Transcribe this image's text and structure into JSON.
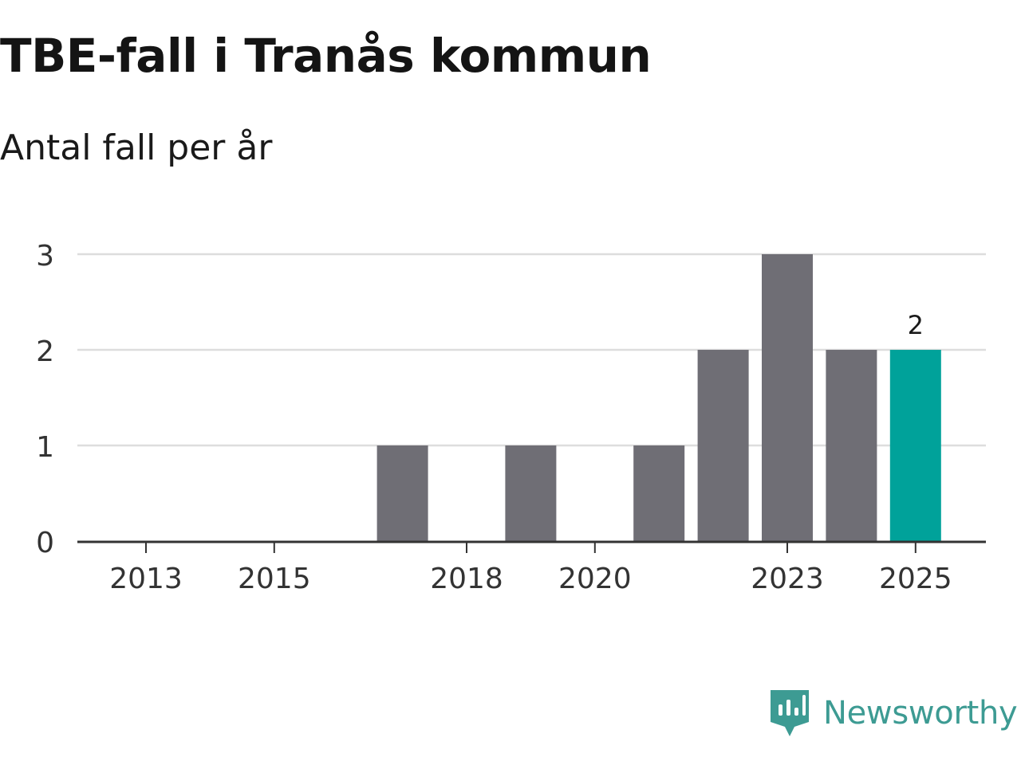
{
  "title": "TBE-fall i Tranås kommun",
  "subtitle": "Antal fall per år",
  "brand": {
    "name": "Newsworthy",
    "icon": "newsworthy-logo-icon",
    "color": "#3d9b93"
  },
  "chart_data": {
    "type": "bar",
    "title": "TBE-fall i Tranås kommun",
    "subtitle": "Antal fall per år",
    "xlabel": "",
    "ylabel": "",
    "categories": [
      "2013",
      "2014",
      "2015",
      "2016",
      "2017",
      "2018",
      "2019",
      "2020",
      "2021",
      "2022",
      "2023",
      "2024",
      "2025"
    ],
    "values": [
      0,
      0,
      0,
      0,
      1,
      0,
      1,
      0,
      1,
      2,
      3,
      2,
      2
    ],
    "x_tick_labels": [
      "2013",
      "2015",
      "2018",
      "2020",
      "2023",
      "2025"
    ],
    "y_ticks": [
      "0",
      "1",
      "2",
      "3"
    ],
    "ylim": [
      0,
      3
    ],
    "grid": true,
    "highlight": {
      "category": "2025",
      "label": "2"
    },
    "colors": {
      "bar": "#6f6e75",
      "highlight": "#00a29a",
      "grid": "#dddddd",
      "axis": "#333333",
      "tick_text": "#333333"
    }
  }
}
